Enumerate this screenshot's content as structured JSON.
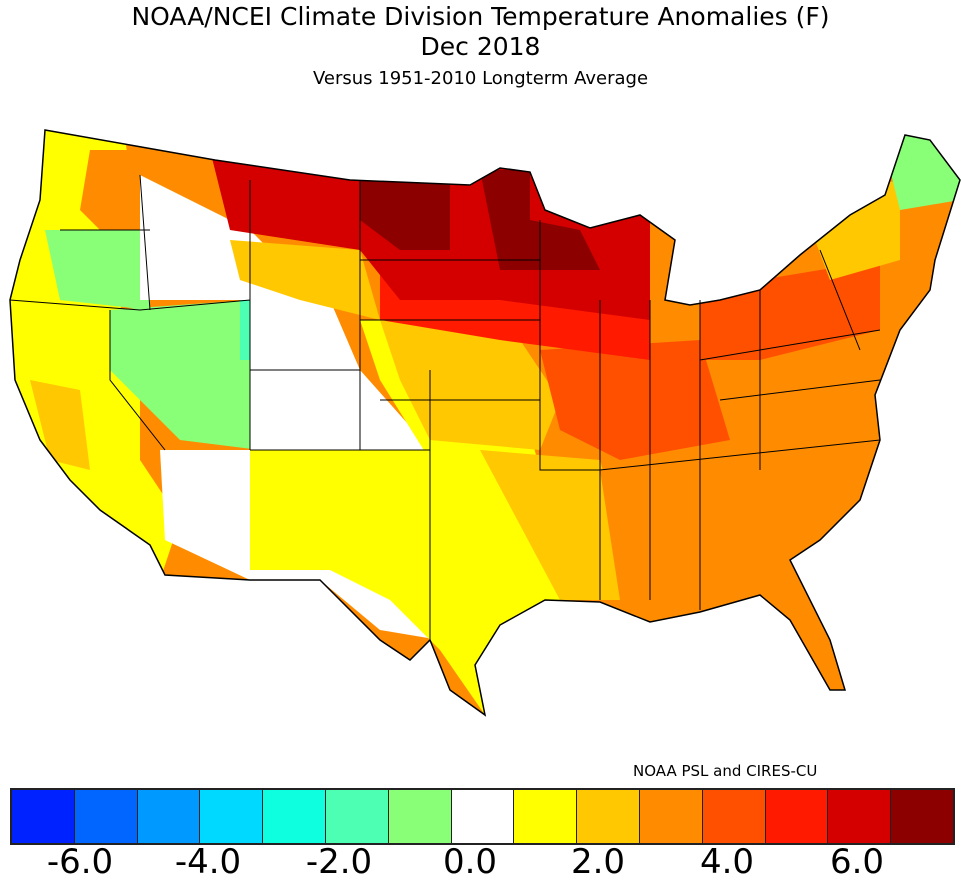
{
  "title": "NOAA/NCEI Climate Division Temperature Anomalies (F)",
  "subtitle": "Dec 2018",
  "subtitle2": "Versus 1951-2010 Longterm Average",
  "credit": "NOAA PSL and CIRES-CU",
  "colorbar": {
    "colors": [
      "#0022ff",
      "#0066ff",
      "#0099ff",
      "#00d9ff",
      "#0dffe0",
      "#4dffb3",
      "#88ff77",
      "#ffffff",
      "#ffff00",
      "#ffc800",
      "#ff8c00",
      "#ff5000",
      "#ff1a00",
      "#d40000",
      "#8c0000"
    ],
    "labels": [
      "-6.0",
      "-4.0",
      "-2.0",
      "0.0",
      "2.0",
      "4.0",
      "6.0"
    ]
  }
}
